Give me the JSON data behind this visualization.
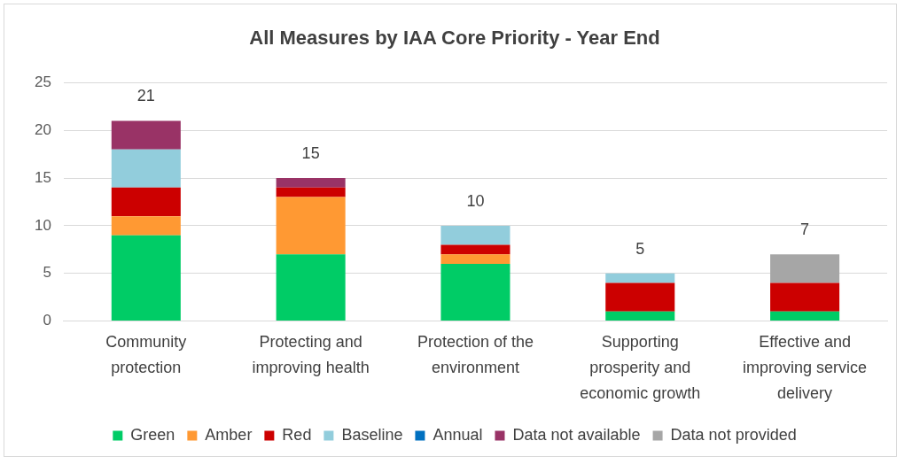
{
  "chart_data": {
    "type": "bar",
    "title": "All Measures by IAA Core Priority - Year End",
    "stacked": true,
    "categories": [
      "Community protection",
      "Protecting and improving health",
      "Protection of the environment",
      "Supporting prosperity and economic growth",
      "Effective and improving service delivery"
    ],
    "series": [
      {
        "name": "Green",
        "color": "#00cc66",
        "values": [
          9,
          7,
          6,
          1,
          1
        ]
      },
      {
        "name": "Amber",
        "color": "#ff9933",
        "values": [
          2,
          6,
          1,
          0,
          0
        ]
      },
      {
        "name": "Red",
        "color": "#cc0000",
        "values": [
          3,
          1,
          1,
          3,
          3
        ]
      },
      {
        "name": "Baseline",
        "color": "#92cddc",
        "values": [
          4,
          0,
          2,
          1,
          0
        ]
      },
      {
        "name": "Annual",
        "color": "#0070c0",
        "values": [
          0,
          0,
          0,
          0,
          0
        ]
      },
      {
        "name": "Data not available",
        "color": "#993366",
        "values": [
          3,
          1,
          0,
          0,
          0
        ]
      },
      {
        "name": "Data not provided",
        "color": "#a6a6a6",
        "values": [
          0,
          0,
          0,
          0,
          3
        ]
      }
    ],
    "totals": [
      "21",
      "15",
      "10",
      "5",
      "7"
    ],
    "ylim": [
      0,
      25
    ],
    "yticks": [
      0,
      5,
      10,
      15,
      20,
      25
    ],
    "grid": "y",
    "legend": "bottom"
  }
}
